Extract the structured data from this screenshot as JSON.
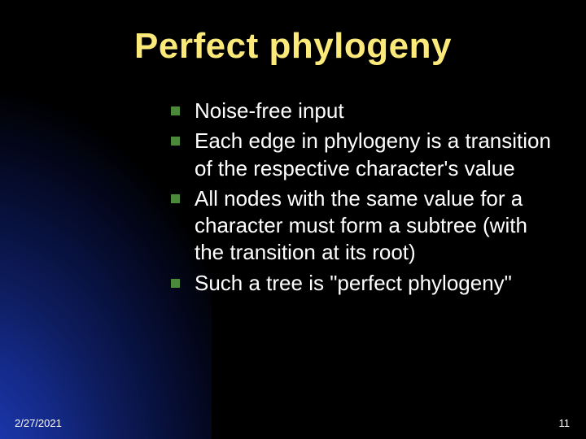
{
  "slide": {
    "title": "Perfect phylogeny",
    "bullets": [
      "Noise-free input",
      "Each edge in phylogeny is a transition of the respective character's value",
      "All nodes with the same value for a character must form a subtree (with the transition at its root)",
      "Such a tree is \"perfect phylogeny\""
    ],
    "footer": {
      "date": "2/27/2021",
      "page": "11"
    },
    "style": {
      "background_color": "#000000",
      "title_color": "#fbea7a",
      "text_color": "#ffffff",
      "bullet_color": "#4a8a3a",
      "gradient_accent": "#2040c0",
      "title_fontsize": 44,
      "body_fontsize": 26,
      "footer_fontsize": 13
    }
  }
}
